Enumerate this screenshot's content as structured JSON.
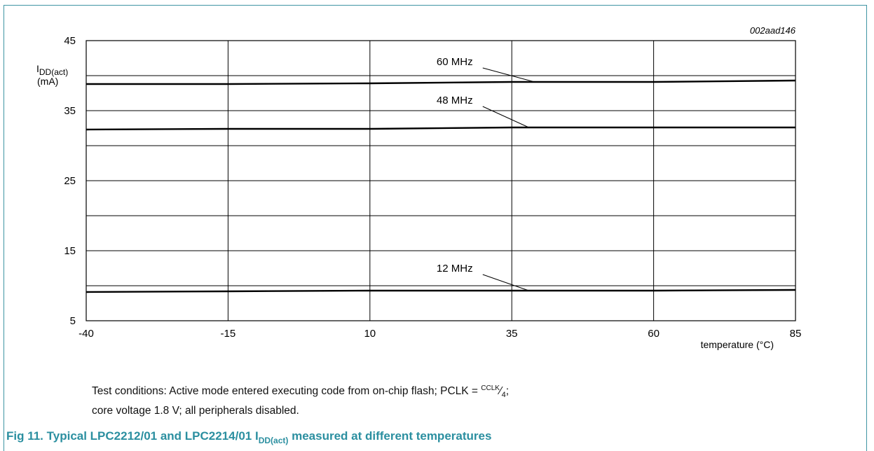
{
  "chart_data": {
    "type": "line",
    "code": "002aad146",
    "ylabel": {
      "main": "I",
      "sub": "DD(act)",
      "unit": "(mA)"
    },
    "xlabel": "temperature (°C)",
    "xlim": [
      -40,
      85
    ],
    "ylim": [
      5,
      45
    ],
    "x_ticks": [
      -40,
      -15,
      10,
      35,
      60,
      85
    ],
    "y_ticks": [
      5,
      15,
      25,
      35,
      45
    ],
    "y_minor_grid": [
      10,
      20,
      30,
      40
    ],
    "grid": true,
    "series": [
      {
        "name": "60 MHz",
        "x": [
          -40,
          -15,
          10,
          35,
          60,
          85
        ],
        "y": [
          38.8,
          38.8,
          38.9,
          39.1,
          39.1,
          39.3
        ]
      },
      {
        "name": "48 MHz",
        "x": [
          -40,
          -15,
          10,
          35,
          60,
          85
        ],
        "y": [
          32.3,
          32.4,
          32.4,
          32.6,
          32.6,
          32.6
        ]
      },
      {
        "name": "12 MHz",
        "x": [
          -40,
          -15,
          10,
          35,
          60,
          85
        ],
        "y": [
          9.1,
          9.2,
          9.3,
          9.3,
          9.3,
          9.4
        ]
      }
    ],
    "annotations": [
      {
        "label": "60 MHz",
        "text_at": [
          20,
          41.5
        ],
        "point_to": [
          39,
          39.1
        ]
      },
      {
        "label": "48 MHz",
        "text_at": [
          20,
          36.0
        ],
        "point_to": [
          38,
          32.6
        ]
      },
      {
        "label": "12 MHz",
        "text_at": [
          20,
          12.0
        ],
        "point_to": [
          38,
          9.3
        ]
      }
    ]
  },
  "notes": {
    "line1_prefix": "Test conditions: Active mode entered executing code from on-chip flash; PCLK = ",
    "line1_frac_num": "CCLK",
    "line1_frac_den": "4",
    "line1_suffix": ";",
    "line2": "core voltage 1.8 V; all peripherals disabled."
  },
  "caption": {
    "prefix": "Fig 11.  Typical LPC2212/01 and LPC2214/01 I",
    "sub": "DD(act)",
    "suffix": " measured at different temperatures"
  },
  "colors": {
    "accent": "#2b8fa0",
    "frame": "#3f95a3",
    "line": "#000000",
    "grid": "#000000"
  }
}
